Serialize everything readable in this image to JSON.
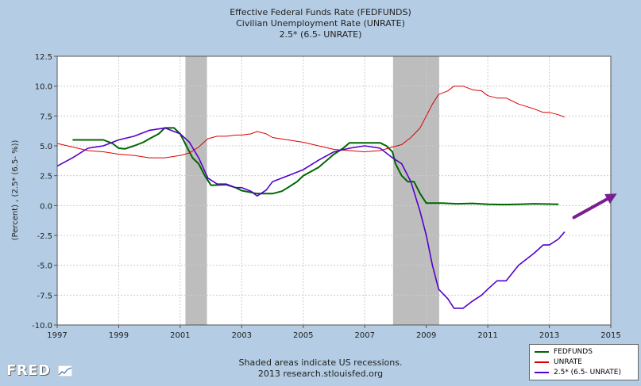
{
  "chart_data": {
    "type": "line",
    "title_lines": [
      "Effective Federal Funds Rate (FEDFUNDS)",
      "Civilian Unemployment Rate (UNRATE)",
      "2.5* (6.5- UNRATE)"
    ],
    "ylabel": "(Percent) , (2.5* (6.5- %))",
    "xlabel": "",
    "xlim": [
      1997,
      2015
    ],
    "ylim": [
      -10.0,
      12.5
    ],
    "x_ticks": [
      "1997",
      "1999",
      "2001",
      "2003",
      "2005",
      "2007",
      "2009",
      "2011",
      "2013",
      "2015"
    ],
    "y_ticks": [
      "12.5",
      "10.0",
      "7.5",
      "5.0",
      "2.5",
      "0.0",
      "-2.5",
      "-5.0",
      "-7.5",
      "-10.0"
    ],
    "grid": true,
    "recessions": [
      {
        "start": 2001.17,
        "end": 2001.87
      },
      {
        "start": 2007.92,
        "end": 2009.42
      }
    ],
    "series": [
      {
        "name": "FEDFUNDS",
        "color": "#006600",
        "points": [
          [
            1997.5,
            5.5
          ],
          [
            1998.0,
            5.5
          ],
          [
            1998.5,
            5.5
          ],
          [
            1998.8,
            5.2
          ],
          [
            1999.0,
            4.8
          ],
          [
            1999.2,
            4.75
          ],
          [
            1999.5,
            5.0
          ],
          [
            1999.8,
            5.3
          ],
          [
            2000.0,
            5.6
          ],
          [
            2000.3,
            6.0
          ],
          [
            2000.5,
            6.5
          ],
          [
            2000.8,
            6.5
          ],
          [
            2001.0,
            6.0
          ],
          [
            2001.2,
            5.0
          ],
          [
            2001.4,
            4.0
          ],
          [
            2001.6,
            3.5
          ],
          [
            2001.8,
            2.5
          ],
          [
            2002.0,
            1.7
          ],
          [
            2002.5,
            1.75
          ],
          [
            2002.8,
            1.5
          ],
          [
            2003.0,
            1.25
          ],
          [
            2003.5,
            1.0
          ],
          [
            2004.0,
            1.0
          ],
          [
            2004.3,
            1.2
          ],
          [
            2004.5,
            1.5
          ],
          [
            2004.8,
            2.0
          ],
          [
            2005.0,
            2.5
          ],
          [
            2005.5,
            3.2
          ],
          [
            2006.0,
            4.3
          ],
          [
            2006.3,
            4.8
          ],
          [
            2006.5,
            5.25
          ],
          [
            2007.0,
            5.25
          ],
          [
            2007.5,
            5.25
          ],
          [
            2007.7,
            5.0
          ],
          [
            2007.9,
            4.5
          ],
          [
            2008.0,
            3.5
          ],
          [
            2008.2,
            2.5
          ],
          [
            2008.4,
            2.0
          ],
          [
            2008.6,
            2.0
          ],
          [
            2008.8,
            1.0
          ],
          [
            2009.0,
            0.2
          ],
          [
            2009.5,
            0.2
          ],
          [
            2010.0,
            0.15
          ],
          [
            2010.5,
            0.18
          ],
          [
            2011.0,
            0.1
          ],
          [
            2011.5,
            0.08
          ],
          [
            2012.0,
            0.1
          ],
          [
            2012.5,
            0.15
          ],
          [
            2013.0,
            0.12
          ],
          [
            2013.3,
            0.1
          ]
        ]
      },
      {
        "name": "UNRATE",
        "color": "#dd0000",
        "points": [
          [
            1997.0,
            5.2
          ],
          [
            1997.5,
            4.9
          ],
          [
            1998.0,
            4.6
          ],
          [
            1998.5,
            4.5
          ],
          [
            1999.0,
            4.3
          ],
          [
            1999.5,
            4.2
          ],
          [
            2000.0,
            4.0
          ],
          [
            2000.5,
            4.0
          ],
          [
            2001.0,
            4.2
          ],
          [
            2001.3,
            4.4
          ],
          [
            2001.6,
            4.9
          ],
          [
            2001.9,
            5.6
          ],
          [
            2002.2,
            5.8
          ],
          [
            2002.5,
            5.8
          ],
          [
            2002.8,
            5.9
          ],
          [
            2003.0,
            5.9
          ],
          [
            2003.3,
            6.0
          ],
          [
            2003.5,
            6.2
          ],
          [
            2003.8,
            6.0
          ],
          [
            2004.0,
            5.7
          ],
          [
            2004.5,
            5.5
          ],
          [
            2005.0,
            5.3
          ],
          [
            2005.5,
            5.0
          ],
          [
            2006.0,
            4.7
          ],
          [
            2006.5,
            4.6
          ],
          [
            2007.0,
            4.5
          ],
          [
            2007.5,
            4.6
          ],
          [
            2007.9,
            4.9
          ],
          [
            2008.2,
            5.1
          ],
          [
            2008.5,
            5.7
          ],
          [
            2008.8,
            6.5
          ],
          [
            2009.0,
            7.5
          ],
          [
            2009.2,
            8.5
          ],
          [
            2009.4,
            9.3
          ],
          [
            2009.7,
            9.6
          ],
          [
            2009.9,
            10.0
          ],
          [
            2010.2,
            10.0
          ],
          [
            2010.5,
            9.7
          ],
          [
            2010.8,
            9.6
          ],
          [
            2011.0,
            9.2
          ],
          [
            2011.3,
            9.0
          ],
          [
            2011.6,
            9.0
          ],
          [
            2012.0,
            8.5
          ],
          [
            2012.5,
            8.1
          ],
          [
            2012.8,
            7.8
          ],
          [
            2013.0,
            7.8
          ],
          [
            2013.3,
            7.6
          ],
          [
            2013.5,
            7.4
          ]
        ]
      },
      {
        "name": "2.5* (6.5- UNRATE)",
        "color": "#5500cc",
        "points": [
          [
            1997.0,
            3.3
          ],
          [
            1997.5,
            4.0
          ],
          [
            1998.0,
            4.8
          ],
          [
            1998.5,
            5.0
          ],
          [
            1999.0,
            5.5
          ],
          [
            1999.5,
            5.8
          ],
          [
            2000.0,
            6.3
          ],
          [
            2000.5,
            6.5
          ],
          [
            2001.0,
            6.0
          ],
          [
            2001.3,
            5.3
          ],
          [
            2001.6,
            4.0
          ],
          [
            2001.9,
            2.3
          ],
          [
            2002.2,
            1.8
          ],
          [
            2002.5,
            1.8
          ],
          [
            2002.8,
            1.5
          ],
          [
            2003.0,
            1.5
          ],
          [
            2003.3,
            1.2
          ],
          [
            2003.5,
            0.8
          ],
          [
            2003.8,
            1.3
          ],
          [
            2004.0,
            2.0
          ],
          [
            2004.5,
            2.5
          ],
          [
            2005.0,
            3.0
          ],
          [
            2005.5,
            3.8
          ],
          [
            2006.0,
            4.5
          ],
          [
            2006.5,
            4.8
          ],
          [
            2007.0,
            5.0
          ],
          [
            2007.5,
            4.8
          ],
          [
            2007.9,
            4.0
          ],
          [
            2008.2,
            3.5
          ],
          [
            2008.5,
            2.0
          ],
          [
            2008.8,
            -0.5
          ],
          [
            2009.0,
            -2.5
          ],
          [
            2009.2,
            -5.0
          ],
          [
            2009.4,
            -7.0
          ],
          [
            2009.7,
            -7.8
          ],
          [
            2009.9,
            -8.6
          ],
          [
            2010.2,
            -8.6
          ],
          [
            2010.5,
            -8.0
          ],
          [
            2010.8,
            -7.5
          ],
          [
            2011.0,
            -7.0
          ],
          [
            2011.3,
            -6.3
          ],
          [
            2011.6,
            -6.3
          ],
          [
            2012.0,
            -5.0
          ],
          [
            2012.5,
            -4.0
          ],
          [
            2012.8,
            -3.3
          ],
          [
            2013.0,
            -3.3
          ],
          [
            2013.3,
            -2.8
          ],
          [
            2013.5,
            -2.2
          ]
        ]
      }
    ],
    "legend": {
      "position": "bottom-right"
    },
    "annotation": {
      "type": "arrow",
      "color": "#7a1f8f",
      "from": [
        2013.8,
        -1.0
      ],
      "to": [
        2015.2,
        1.0
      ]
    }
  },
  "footer": {
    "line1": "Shaded areas indicate US recessions.",
    "line2": "2013 research.stlouisfed.org"
  },
  "logo": {
    "text": "FRED"
  }
}
